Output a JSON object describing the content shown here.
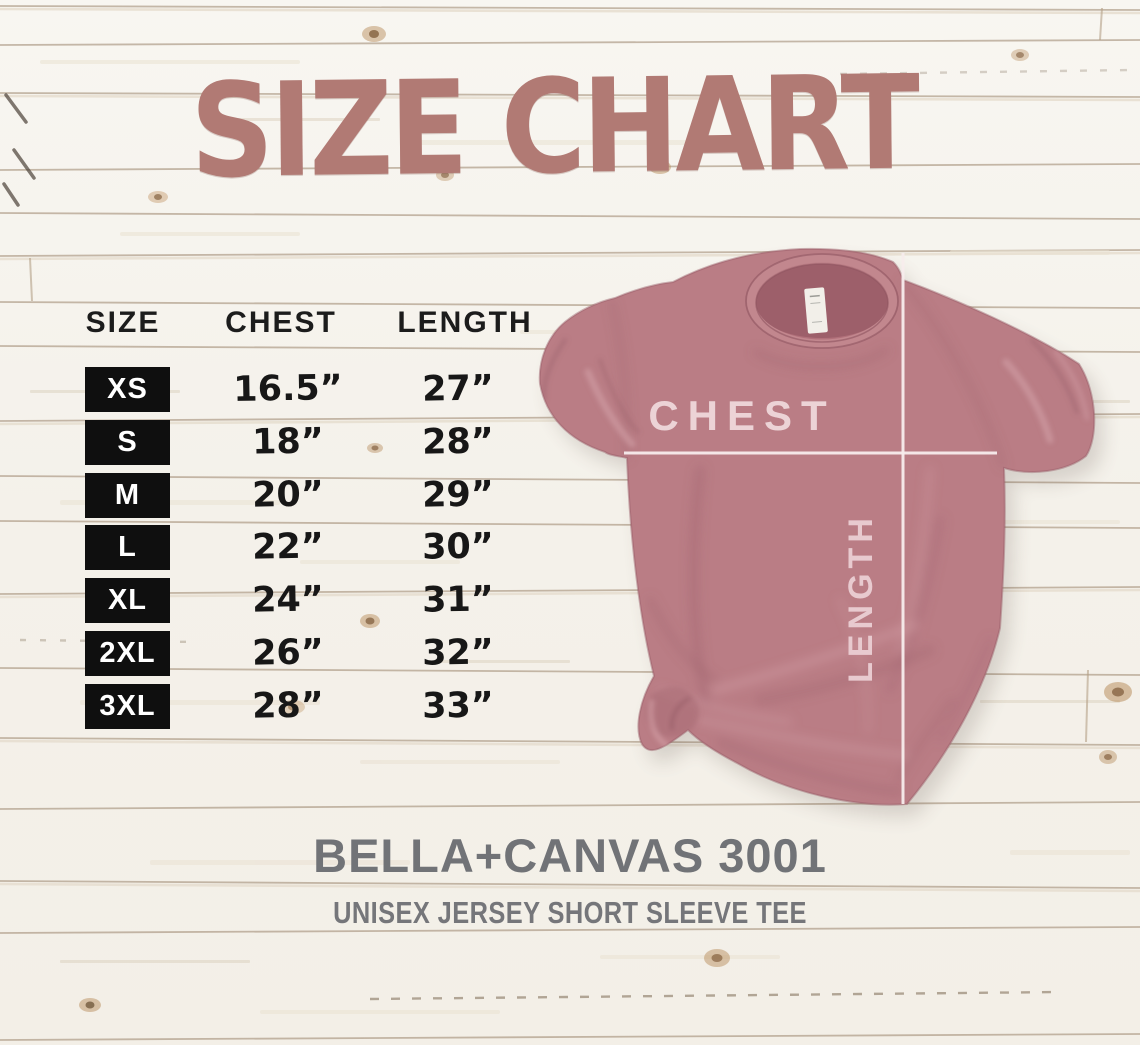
{
  "title": "SIZE CHART",
  "table": {
    "headers": [
      "SIZE",
      "CHEST",
      "LENGTH"
    ],
    "rows": [
      {
        "size": "XS",
        "chest": "16.5”",
        "length": "27”"
      },
      {
        "size": "S",
        "chest": "18”",
        "length": "28”"
      },
      {
        "size": "M",
        "chest": "20”",
        "length": "29”"
      },
      {
        "size": "L",
        "chest": "22”",
        "length": "30”"
      },
      {
        "size": "XL",
        "chest": "24”",
        "length": "31”"
      },
      {
        "size": "2XL",
        "chest": "26”",
        "length": "32”"
      },
      {
        "size": "3XL",
        "chest": "28”",
        "length": "33”"
      }
    ]
  },
  "shirt": {
    "chest_label": "CHEST",
    "length_label": "LENGTH"
  },
  "footer": {
    "product": "BELLA+CANVAS 3001",
    "description": "UNISEX JERSEY SHORT SLEEVE TEE"
  },
  "colors": {
    "title": "#b17a74",
    "table_text": "#171717",
    "badge_background": "#0f0f0f",
    "badge_text": "#ffffff",
    "shirt_mauve": "#ba7d85",
    "measurement_line": "#f7ecec",
    "shirt_label_text": "#ecd3d6",
    "footer_text": "#717377",
    "wood_background": "#f6f3ee"
  },
  "chart_data": {
    "type": "table",
    "title": "SIZE CHART",
    "columns": [
      "SIZE",
      "CHEST",
      "LENGTH"
    ],
    "units": "inches",
    "rows": [
      [
        "XS",
        16.5,
        27
      ],
      [
        "S",
        18,
        28
      ],
      [
        "M",
        20,
        29
      ],
      [
        "L",
        22,
        30
      ],
      [
        "XL",
        24,
        31
      ],
      [
        "2XL",
        26,
        32
      ],
      [
        "3XL",
        28,
        33
      ]
    ]
  }
}
